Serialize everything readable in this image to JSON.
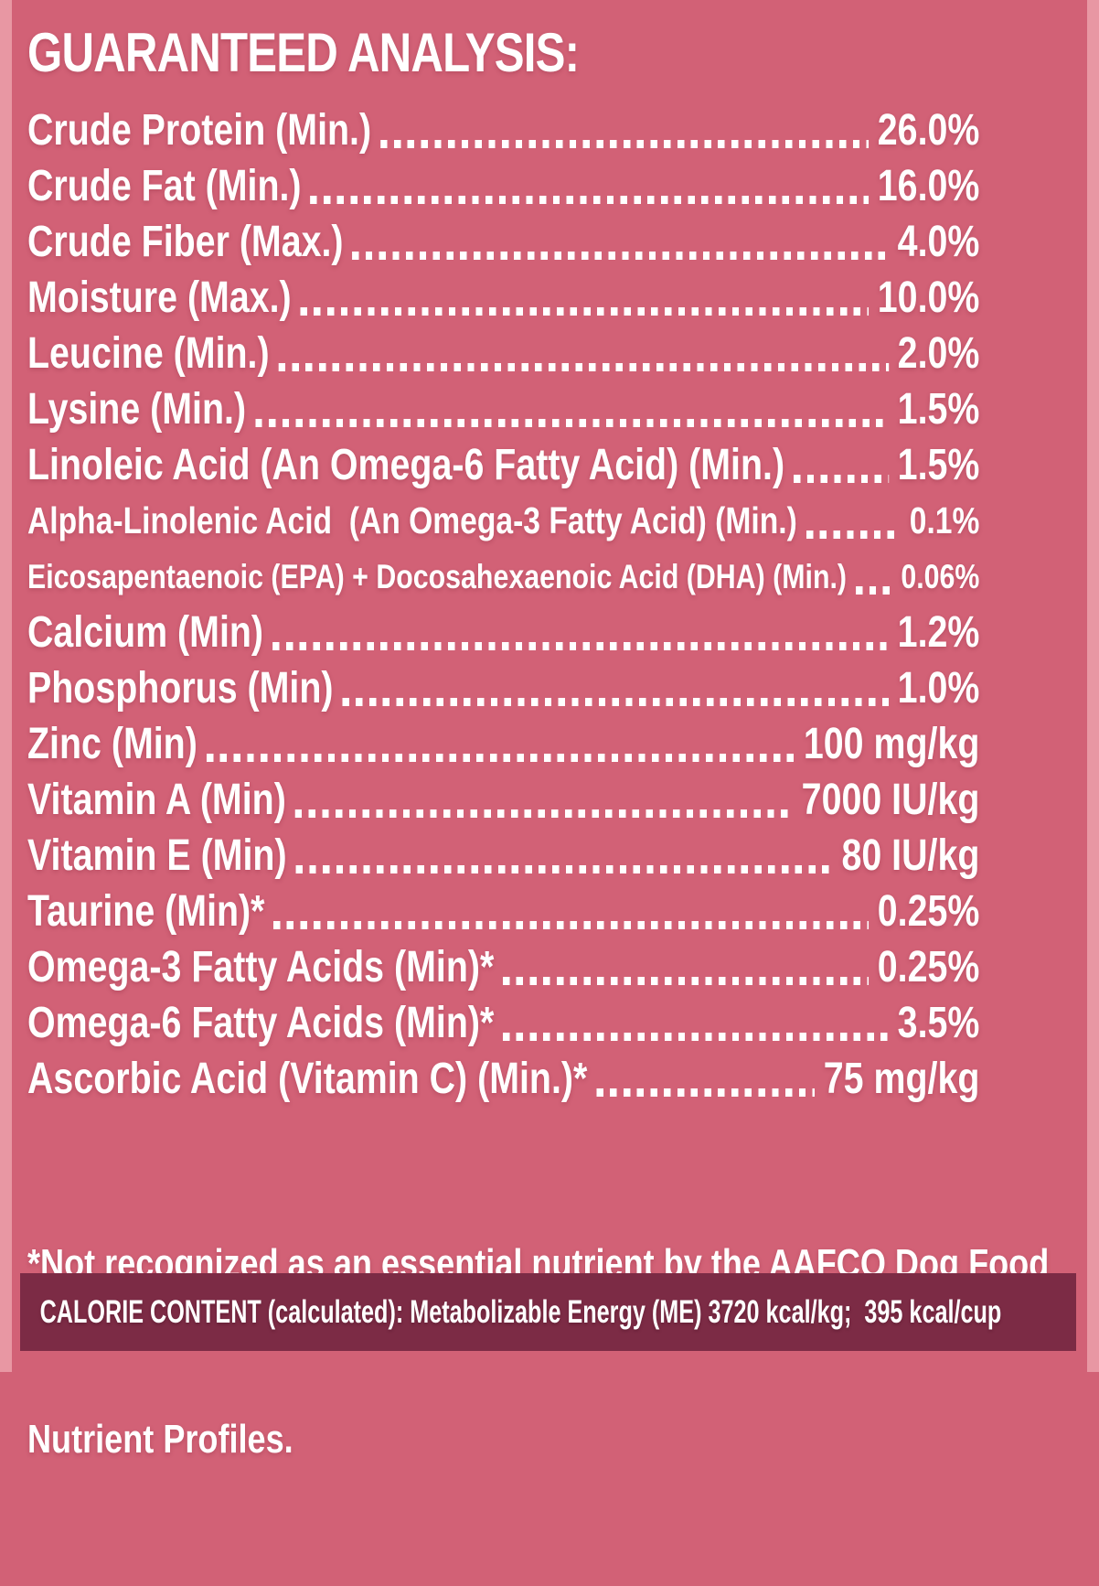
{
  "colors": {
    "background": "#D26176",
    "edge_strip": "#E897A3",
    "calorie_bar_background": "#7C2B45",
    "text": "#FFFFFF"
  },
  "label": {
    "title": "GUARANTEED ANALYSIS:",
    "rows": [
      {
        "name": "Crude Protein (Min.)",
        "value": "26.0%"
      },
      {
        "name": "Crude Fat (Min.)",
        "value": "16.0%"
      },
      {
        "name": "Crude Fiber (Max.)",
        "value": "4.0%"
      },
      {
        "name": "Moisture (Max.)",
        "value": "10.0%"
      },
      {
        "name": "Leucine (Min.)",
        "value": "2.0%"
      },
      {
        "name": "Lysine (Min.)",
        "value": "1.5%"
      },
      {
        "name": "Linoleic Acid (An Omega-6 Fatty Acid) (Min.)",
        "value": "1.5%"
      },
      {
        "name": "Alpha-Linolenic Acid  (An Omega-3 Fatty Acid) (Min.)",
        "value": "0.1%"
      },
      {
        "name": "Eicosapentaenoic (EPA) + Docosahexaenoic Acid (DHA) (Min.)",
        "value": "0.06%"
      },
      {
        "name": "Calcium (Min)",
        "value": "1.2%"
      },
      {
        "name": "Phosphorus (Min)",
        "value": "1.0%"
      },
      {
        "name": "Zinc (Min)",
        "value": "100 mg/kg"
      },
      {
        "name": "Vitamin A (Min)",
        "value": "7000 IU/kg"
      },
      {
        "name": "Vitamin E (Min)",
        "value": "80 IU/kg"
      },
      {
        "name": "Taurine (Min)*",
        "value": "0.25%"
      },
      {
        "name": "Omega-3 Fatty Acids (Min)*",
        "value": "0.25%"
      },
      {
        "name": "Omega-6 Fatty Acids (Min)*",
        "value": "3.5%"
      },
      {
        "name": "Ascorbic Acid (Vitamin C) (Min.)*",
        "value": "75 mg/kg"
      }
    ],
    "footnote_line1": "*Not recognized as an essential nutrient by the AAFCO Dog Food",
    "footnote_line2": "Nutrient Profiles.",
    "calorie_content": "CALORIE CONTENT (calculated): Metabolizable Energy (ME) 3720 kcal/kg;  395 kcal/cup"
  }
}
